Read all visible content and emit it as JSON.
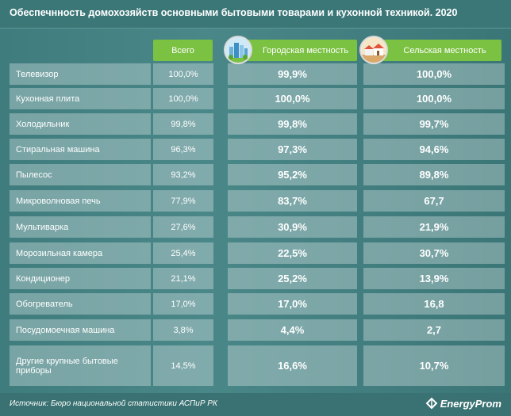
{
  "title": "Обеспечнность домохозяйств основными бытовыми товарами и кухонной техникой. 2020",
  "headers": {
    "total": "Всего",
    "urban": "Городская местность",
    "rural": "Сельская местность"
  },
  "rows": [
    {
      "name": "Телевизор",
      "total": "100,0%",
      "urban": "99,9%",
      "rural": "100,0%"
    },
    {
      "name": "Кухонная плита",
      "total": "100,0%",
      "urban": "100,0%",
      "rural": "100,0%"
    },
    {
      "name": "Холодильник",
      "total": "99,8%",
      "urban": "99,8%",
      "rural": "99,7%"
    },
    {
      "name": "Стиральная машина",
      "total": "96,3%",
      "urban": "97,3%",
      "rural": "94,6%"
    },
    {
      "name": "Пылесос",
      "total": "93,2%",
      "urban": "95,2%",
      "rural": "89,8%"
    },
    {
      "name": "Микроволновая печь",
      "total": "77,9%",
      "urban": "83,7%",
      "rural": "67,7"
    },
    {
      "name": "Мультиварка",
      "total": "27,6%",
      "urban": "30,9%",
      "rural": "21,9%"
    },
    {
      "name": "Морозильная камера",
      "total": "25,4%",
      "urban": "22,5%",
      "rural": "30,7%"
    },
    {
      "name": "Кондиционер",
      "total": "21,1%",
      "urban": "25,2%",
      "rural": "13,9%"
    },
    {
      "name": "Обогреватель",
      "total": "17,0%",
      "urban": "17,0%",
      "rural": "16,8"
    },
    {
      "name": "Посудомоечная машина",
      "total": "3,8%",
      "urban": "4,4%",
      "rural": "2,7"
    },
    {
      "name": "Другие крупные бытовые приборы",
      "total": "14,5%",
      "urban": "16,6%",
      "rural": "10,7%"
    }
  ],
  "footer": {
    "source": "Источник: Бюро национальной  статистики АСПиР РК",
    "logo_text": "EnergyProm"
  },
  "colors": {
    "background": "#3e7a7b",
    "header_accent": "#7bc142"
  },
  "icons": {
    "urban": "city-buildings-icon",
    "rural": "village-houses-icon",
    "logo": "energyprom-logo-icon"
  }
}
